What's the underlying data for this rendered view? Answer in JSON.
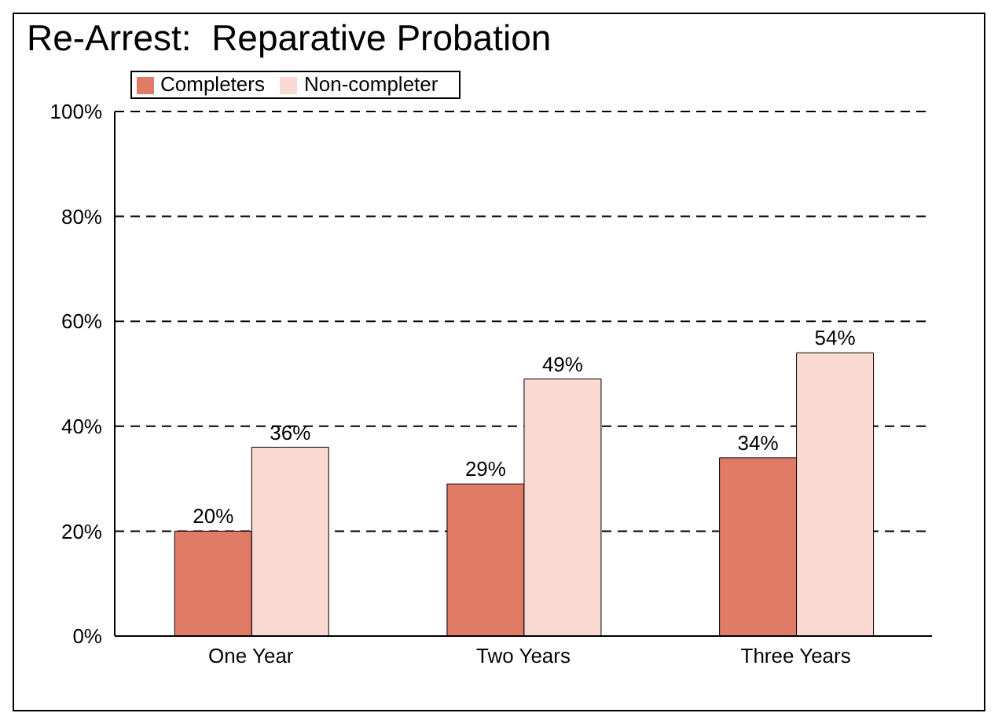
{
  "chart_data": {
    "type": "bar",
    "title": "Re-Arrest:  Reparative Probation",
    "categories": [
      "One Year",
      "Two Years",
      "Three Years"
    ],
    "series": [
      {
        "name": "Completers",
        "color": "#e07b66",
        "values": [
          20,
          29,
          34
        ],
        "value_labels": [
          "20%",
          "29%",
          "34%"
        ]
      },
      {
        "name": "Non-completer",
        "color": "#f9d9d2",
        "values": [
          36,
          49,
          54
        ],
        "value_labels": [
          "36%",
          "49%",
          "54%"
        ]
      }
    ],
    "ylim": [
      0,
      100
    ],
    "yticks": [
      {
        "value": 0,
        "label": "0%"
      },
      {
        "value": 20,
        "label": "20%"
      },
      {
        "value": 40,
        "label": "40%"
      },
      {
        "value": 60,
        "label": "60%"
      },
      {
        "value": 80,
        "label": "80%"
      },
      {
        "value": 100,
        "label": "100%"
      }
    ],
    "grid": "y",
    "legend": "top left"
  }
}
